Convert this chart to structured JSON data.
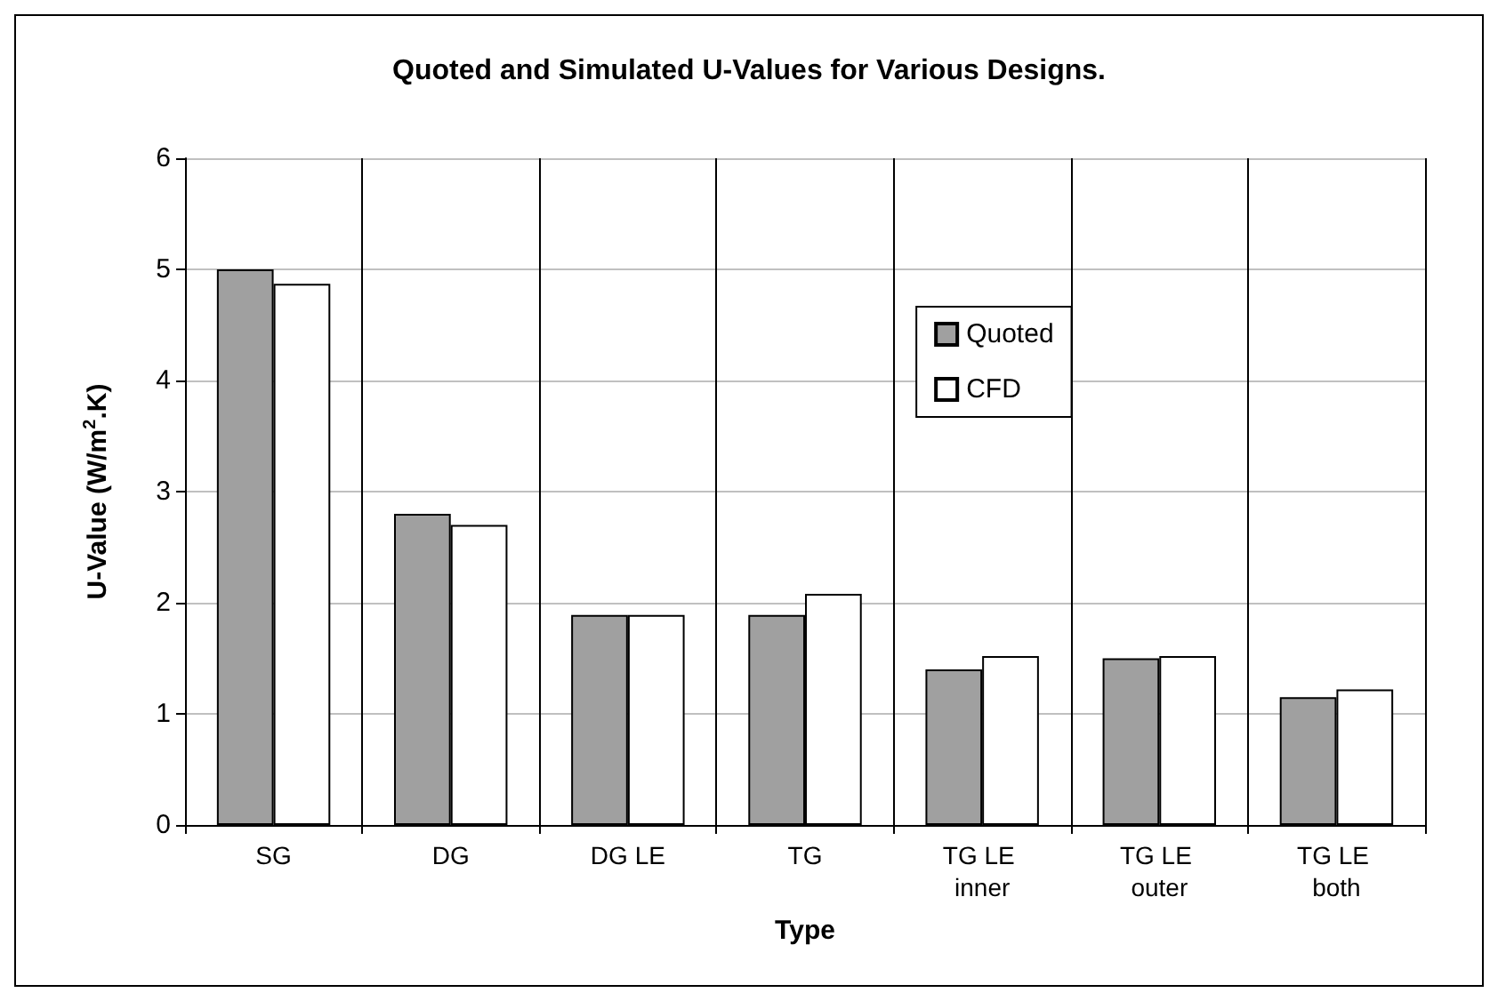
{
  "chart_data": {
    "type": "bar",
    "title": "Quoted and Simulated U-Values for Various Designs.",
    "xlabel": "Type",
    "ylabel": "U-Value (W/m$^{2}$.K)",
    "categories": [
      "SG",
      "DG",
      "DG LE",
      "TG",
      "TG LE inner",
      "TG LE outer",
      "TG LE both"
    ],
    "series": [
      {
        "name": "Quoted",
        "color": "#a0a0a0",
        "values": [
          5.0,
          2.8,
          1.89,
          1.89,
          1.4,
          1.5,
          1.15
        ]
      },
      {
        "name": "CFD",
        "color": "#ffffff",
        "values": [
          4.87,
          2.7,
          1.89,
          2.08,
          1.52,
          1.52,
          1.22
        ]
      }
    ],
    "ylim": [
      0,
      6
    ],
    "yticks": [
      0,
      1,
      2,
      3,
      4,
      5,
      6
    ],
    "grid": true,
    "legend": "right"
  }
}
